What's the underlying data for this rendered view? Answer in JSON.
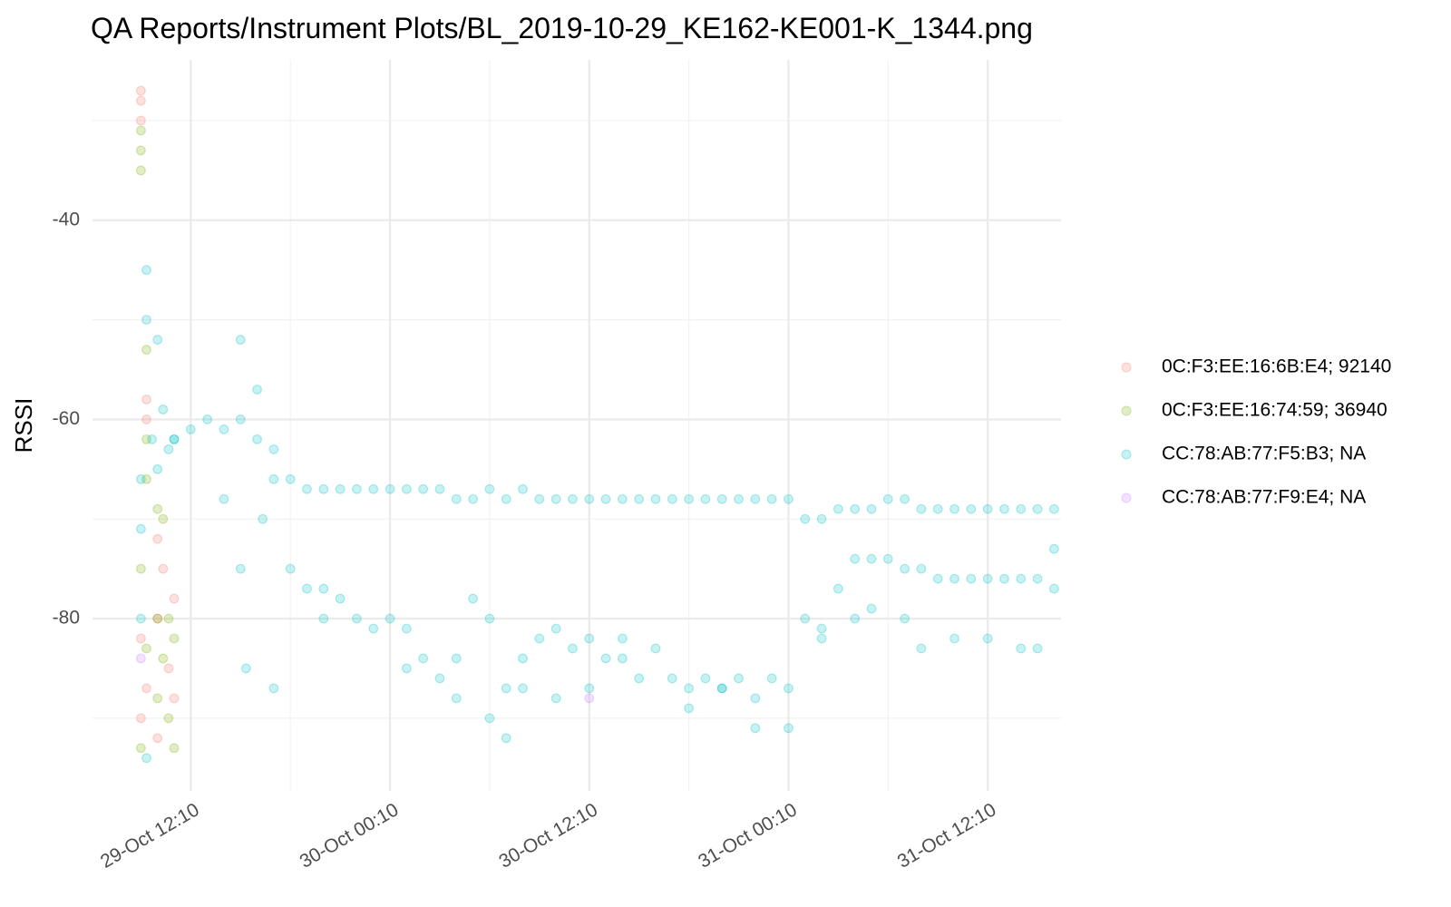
{
  "chart_data": {
    "type": "scatter",
    "title": "QA Reports/Instrument Plots/BL_2019-10-29_KE162-KE001-K_1344.png",
    "y_label": "RSSI",
    "xlim": [
      "29-Oct 06:15",
      "31-Oct 16:35"
    ],
    "xticks": [
      "29-Oct 12:10",
      "30-Oct 00:10",
      "30-Oct 12:10",
      "31-Oct 00:10",
      "31-Oct 12:10"
    ],
    "xminor": [
      "29-Oct 18:10",
      "30-Oct 06:10",
      "30-Oct 18:10",
      "31-Oct 06:10"
    ],
    "ylim": [
      -97.3,
      -23.9
    ],
    "yticks": [
      -40,
      -60,
      -80
    ],
    "yminor": [
      -30,
      -50,
      -70,
      -90
    ],
    "grid": true,
    "legend": "right",
    "series": [
      {
        "name": "0C:F3:EE:16:6B:E4; 92140",
        "color": "#F8766D",
        "x": [
          "29-Oct 09:10",
          "29-Oct 09:10",
          "29-Oct 09:10",
          "29-Oct 09:10",
          "29-Oct 09:10",
          "29-Oct 09:30",
          "29-Oct 09:30",
          "29-Oct 09:30",
          "29-Oct 10:10",
          "29-Oct 10:10",
          "29-Oct 10:10",
          "29-Oct 10:30",
          "29-Oct 10:50",
          "29-Oct 11:10",
          "29-Oct 11:10"
        ],
        "values": [
          -27,
          -28,
          -30,
          -82,
          -90,
          -58,
          -60,
          -87,
          -72,
          -80,
          -92,
          -75,
          -85,
          -88,
          -78
        ]
      },
      {
        "name": "0C:F3:EE:16:74:59; 36940",
        "color": "#7CAE00",
        "x": [
          "29-Oct 09:10",
          "29-Oct 09:10",
          "29-Oct 09:10",
          "29-Oct 09:10",
          "29-Oct 09:10",
          "29-Oct 09:30",
          "29-Oct 09:30",
          "29-Oct 09:30",
          "29-Oct 09:30",
          "29-Oct 10:10",
          "29-Oct 10:10",
          "29-Oct 10:10",
          "29-Oct 10:30",
          "29-Oct 10:30",
          "29-Oct 10:50",
          "29-Oct 10:50",
          "29-Oct 11:10",
          "29-Oct 11:10"
        ],
        "values": [
          -31,
          -33,
          -35,
          -75,
          -93,
          -53,
          -62,
          -66,
          -83,
          -69,
          -80,
          -88,
          -70,
          -84,
          -80,
          -90,
          -82,
          -93
        ]
      },
      {
        "name": "CC:78:AB:77:F5:B3; NA",
        "color": "#00BFC4",
        "x": [
          "29-Oct 11:10",
          "29-Oct 12:10",
          "29-Oct 13:10",
          "29-Oct 14:10",
          "29-Oct 15:10",
          "29-Oct 16:10",
          "29-Oct 17:10",
          "29-Oct 18:10",
          "29-Oct 19:10",
          "29-Oct 20:10",
          "29-Oct 21:10",
          "29-Oct 22:10",
          "29-Oct 23:10",
          "30-Oct 00:10",
          "30-Oct 01:10",
          "30-Oct 02:10",
          "30-Oct 03:10",
          "30-Oct 04:10",
          "30-Oct 05:10",
          "30-Oct 06:10",
          "30-Oct 07:10",
          "30-Oct 08:10",
          "30-Oct 09:10",
          "30-Oct 10:10",
          "30-Oct 11:10",
          "30-Oct 12:10",
          "30-Oct 13:10",
          "30-Oct 14:10",
          "30-Oct 15:10",
          "30-Oct 16:10",
          "30-Oct 17:10",
          "30-Oct 18:10",
          "30-Oct 19:10",
          "30-Oct 20:10",
          "30-Oct 21:10",
          "30-Oct 22:10",
          "30-Oct 23:10",
          "31-Oct 00:10",
          "31-Oct 01:10",
          "31-Oct 02:10",
          "31-Oct 03:10",
          "31-Oct 04:10",
          "31-Oct 05:10",
          "31-Oct 06:10",
          "31-Oct 07:10",
          "31-Oct 08:10",
          "31-Oct 09:10",
          "31-Oct 10:10",
          "31-Oct 11:10",
          "31-Oct 12:10",
          "31-Oct 13:10",
          "31-Oct 14:10",
          "31-Oct 15:10",
          "31-Oct 16:10",
          "29-Oct 18:10",
          "29-Oct 19:10",
          "29-Oct 20:10",
          "29-Oct 21:10",
          "29-Oct 22:10",
          "29-Oct 23:10",
          "30-Oct 00:10",
          "30-Oct 01:10",
          "30-Oct 02:10",
          "30-Oct 03:10",
          "30-Oct 04:10",
          "30-Oct 05:10",
          "30-Oct 06:10",
          "30-Oct 07:10",
          "30-Oct 08:10",
          "30-Oct 09:10",
          "30-Oct 10:10",
          "30-Oct 11:10",
          "30-Oct 12:10",
          "30-Oct 13:10",
          "30-Oct 14:10",
          "30-Oct 15:10",
          "30-Oct 16:10",
          "30-Oct 17:10",
          "30-Oct 18:10",
          "30-Oct 19:10",
          "30-Oct 20:10",
          "30-Oct 21:10",
          "30-Oct 22:10",
          "30-Oct 23:10",
          "31-Oct 00:10",
          "31-Oct 01:10",
          "31-Oct 02:10",
          "31-Oct 03:10",
          "31-Oct 04:10",
          "31-Oct 05:10",
          "31-Oct 06:10",
          "31-Oct 07:10",
          "31-Oct 08:10",
          "31-Oct 09:10",
          "31-Oct 10:10",
          "31-Oct 11:10",
          "31-Oct 12:10",
          "31-Oct 13:10",
          "31-Oct 14:10",
          "31-Oct 15:10",
          "31-Oct 16:10",
          "29-Oct 20:10",
          "30-Oct 01:10",
          "30-Oct 04:10",
          "30-Oct 06:10",
          "30-Oct 08:10",
          "30-Oct 10:10",
          "30-Oct 12:10",
          "30-Oct 14:10",
          "30-Oct 18:10",
          "30-Oct 20:10",
          "30-Oct 22:10",
          "31-Oct 00:10",
          "31-Oct 02:10",
          "31-Oct 04:10",
          "31-Oct 05:10",
          "31-Oct 07:10",
          "31-Oct 08:10",
          "31-Oct 10:10",
          "31-Oct 12:10",
          "31-Oct 14:10",
          "31-Oct 15:10",
          "31-Oct 16:10",
          "29-Oct 09:10",
          "29-Oct 09:10",
          "29-Oct 09:10",
          "29-Oct 09:30",
          "29-Oct 09:30",
          "29-Oct 09:30",
          "29-Oct 09:50",
          "29-Oct 10:10",
          "29-Oct 10:10",
          "29-Oct 10:30",
          "29-Oct 10:50",
          "29-Oct 11:10",
          "29-Oct 14:10",
          "29-Oct 15:10",
          "29-Oct 15:10",
          "29-Oct 15:30",
          "29-Oct 16:10",
          "29-Oct 16:30",
          "29-Oct 17:10",
          "29-Oct 17:10",
          "30-Oct 07:10"
        ],
        "values": [
          -62,
          -61,
          -60,
          -61,
          -60,
          -62,
          -66,
          -66,
          -67,
          -67,
          -67,
          -67,
          -67,
          -67,
          -67,
          -67,
          -67,
          -68,
          -68,
          -67,
          -68,
          -67,
          -68,
          -68,
          -68,
          -68,
          -68,
          -68,
          -68,
          -68,
          -68,
          -68,
          -68,
          -68,
          -68,
          -68,
          -68,
          -68,
          -70,
          -70,
          -69,
          -69,
          -69,
          -68,
          -68,
          -69,
          -69,
          -69,
          -69,
          -69,
          -69,
          -69,
          -69,
          -69,
          -75,
          -77,
          -77,
          -78,
          -80,
          -81,
          -80,
          -81,
          -84,
          -86,
          -84,
          -78,
          -80,
          -87,
          -84,
          -82,
          -81,
          -83,
          -82,
          -84,
          -82,
          -86,
          -83,
          -86,
          -87,
          -86,
          -87,
          -86,
          -88,
          -86,
          -87,
          -80,
          -82,
          -77,
          -74,
          -74,
          -74,
          -75,
          -75,
          -76,
          -76,
          -76,
          -76,
          -76,
          -76,
          -76,
          -73,
          -80,
          -85,
          -88,
          -90,
          -87,
          -88,
          -87,
          -84,
          -89,
          -87,
          -91,
          -91,
          -81,
          -80,
          -79,
          -80,
          -83,
          -82,
          -82,
          -83,
          -83,
          -77,
          -66,
          -71,
          -80,
          -45,
          -50,
          -94,
          -62,
          -52,
          -65,
          -59,
          -63,
          -62,
          -68,
          -52,
          -75,
          -85,
          -57,
          -70,
          -87,
          -63,
          -92
        ]
      },
      {
        "name": "CC:78:AB:77:F9:E4; NA",
        "color": "#C77CFF",
        "x": [
          "29-Oct 09:10",
          "30-Oct 12:10"
        ],
        "values": [
          -84,
          -88
        ]
      }
    ]
  }
}
